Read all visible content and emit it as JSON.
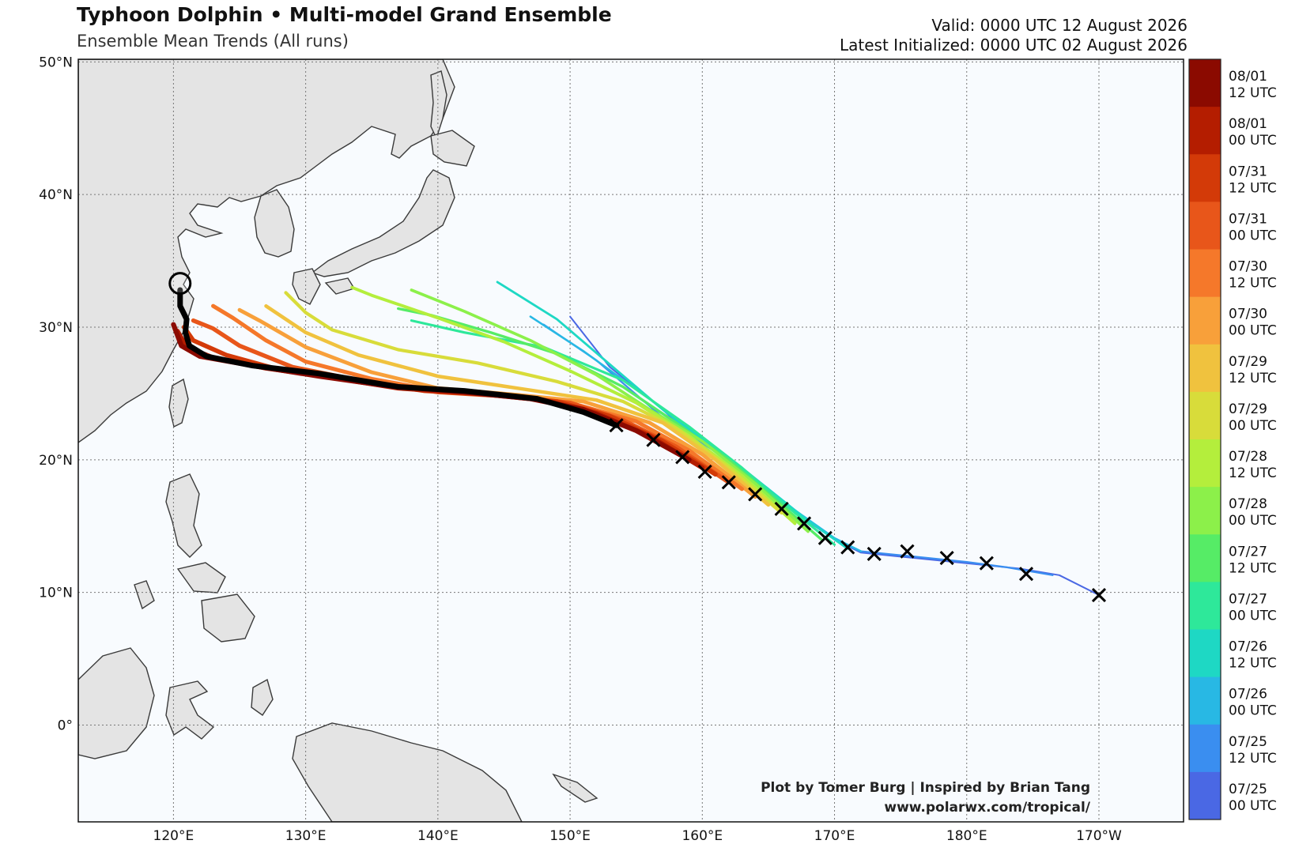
{
  "header": {
    "title": "Typhoon Dolphin • Multi-model Grand Ensemble",
    "subtitle": "Ensemble Mean Trends (All runs)",
    "valid": "Valid: 0000 UTC 12 August 2026",
    "latest": "Latest Initialized: 0000 UTC 02 August 2026"
  },
  "axes": {
    "lat_labels": [
      "50°N",
      "40°N",
      "30°N",
      "20°N",
      "10°N",
      "0°"
    ],
    "lon_labels": [
      "120°E",
      "130°E",
      "140°E",
      "150°E",
      "160°E",
      "170°E",
      "180°E",
      "170°W"
    ]
  },
  "colorbar": {
    "labels": [
      [
        "08/01",
        "12 UTC"
      ],
      [
        "08/01",
        "00 UTC"
      ],
      [
        "07/31",
        "12 UTC"
      ],
      [
        "07/31",
        "00 UTC"
      ],
      [
        "07/30",
        "12 UTC"
      ],
      [
        "07/30",
        "00 UTC"
      ],
      [
        "07/29",
        "12 UTC"
      ],
      [
        "07/29",
        "00 UTC"
      ],
      [
        "07/28",
        "12 UTC"
      ],
      [
        "07/28",
        "00 UTC"
      ],
      [
        "07/27",
        "12 UTC"
      ],
      [
        "07/27",
        "00 UTC"
      ],
      [
        "07/26",
        "12 UTC"
      ],
      [
        "07/26",
        "00 UTC"
      ],
      [
        "07/25",
        "12 UTC"
      ],
      [
        "07/25",
        "00 UTC"
      ]
    ],
    "colors": [
      "#8b0a00",
      "#b41d00",
      "#d33a08",
      "#e8561a",
      "#f5782a",
      "#f8a03a",
      "#f0c23e",
      "#d8dc3a",
      "#b4ee3c",
      "#8cf04a",
      "#56ec66",
      "#2ee89a",
      "#1ed8c4",
      "#28b8e4",
      "#3a8ef0",
      "#4a68e4"
    ]
  },
  "credits": {
    "line1": "Plot by Tomer Burg | Inspired by Brian Tang",
    "line2": "www.polarwx.com/tropical/"
  },
  "chart_data": {
    "type": "map",
    "projection": "equirectangular",
    "lon_range": [
      112.8,
      196.4
    ],
    "lat_range": [
      -7.3,
      50.2
    ],
    "gridlines": true,
    "ensemble_mean_tracks": [
      {
        "run": "07/25 00 UTC",
        "color": "#4a68e4",
        "points": [
          [
            190,
            9.8
          ],
          [
            187,
            11.3
          ],
          [
            184,
            11.8
          ],
          [
            180,
            12.2
          ],
          [
            176,
            12.6
          ],
          [
            172,
            13.0
          ],
          [
            170,
            14.0
          ],
          [
            167,
            16.0
          ],
          [
            164,
            18.2
          ],
          [
            160,
            21.0
          ],
          [
            157,
            23.8
          ],
          [
            153,
            27.0
          ],
          [
            150,
            30.8
          ]
        ]
      },
      {
        "run": "07/25 12 UTC",
        "color": "#3a8ef0",
        "points": [
          [
            186.5,
            11.3
          ],
          [
            183,
            11.9
          ],
          [
            180,
            12.3
          ],
          [
            176,
            12.7
          ],
          [
            172,
            13.1
          ],
          [
            170,
            14.0
          ],
          [
            167,
            16.1
          ],
          [
            164,
            18.4
          ],
          [
            161,
            20.6
          ],
          [
            157,
            23.2
          ],
          [
            152,
            27.5
          ],
          [
            148,
            30.2
          ]
        ]
      },
      {
        "run": "07/26 00 UTC",
        "color": "#28b8e4",
        "points": [
          [
            172,
            13.1
          ],
          [
            170,
            14.1
          ],
          [
            167,
            16.2
          ],
          [
            163.5,
            19.0
          ],
          [
            160,
            21.4
          ],
          [
            156,
            24.6
          ],
          [
            151,
            28.2
          ],
          [
            147,
            30.8
          ]
        ]
      },
      {
        "run": "07/26 12 UTC",
        "color": "#1ed8c4",
        "points": [
          [
            171,
            13.3
          ],
          [
            168,
            15.4
          ],
          [
            165,
            17.8
          ],
          [
            161,
            20.8
          ],
          [
            157,
            23.8
          ],
          [
            153,
            27.2
          ],
          [
            149,
            30.6
          ],
          [
            144.5,
            33.4
          ]
        ]
      },
      {
        "run": "07/27 00 UTC",
        "color": "#2ee89a",
        "points": [
          [
            170,
            13.6
          ],
          [
            167,
            16.0
          ],
          [
            163,
            19.4
          ],
          [
            159,
            22.5
          ],
          [
            154,
            26.0
          ],
          [
            148,
            28.5
          ],
          [
            142,
            29.6
          ],
          [
            138,
            30.5
          ]
        ]
      },
      {
        "run": "07/27 12 UTC",
        "color": "#56ec66",
        "points": [
          [
            169,
            14.0
          ],
          [
            166,
            16.6
          ],
          [
            162,
            20.0
          ],
          [
            158,
            22.8
          ],
          [
            154,
            25.5
          ],
          [
            149,
            28.0
          ],
          [
            144,
            29.6
          ],
          [
            139.5,
            30.9
          ],
          [
            137,
            31.4
          ]
        ]
      },
      {
        "run": "07/28 00 UTC",
        "color": "#8cf04a",
        "points": [
          [
            168,
            14.6
          ],
          [
            164,
            18.2
          ],
          [
            160,
            21.4
          ],
          [
            156,
            23.8
          ],
          [
            152,
            26.4
          ],
          [
            147,
            29.0
          ],
          [
            142,
            31.2
          ],
          [
            138,
            32.8
          ]
        ]
      },
      {
        "run": "07/28 12 UTC",
        "color": "#b4ee3c",
        "points": [
          [
            167,
            15.2
          ],
          [
            163,
            18.8
          ],
          [
            159,
            21.8
          ],
          [
            155,
            24.3
          ],
          [
            150,
            26.7
          ],
          [
            145,
            28.9
          ],
          [
            140,
            30.7
          ],
          [
            135,
            32.4
          ],
          [
            133.5,
            33.0
          ]
        ]
      },
      {
        "run": "07/29 00 UTC",
        "color": "#d8dc3a",
        "points": [
          [
            166,
            16.0
          ],
          [
            162,
            19.4
          ],
          [
            158,
            22.4
          ],
          [
            154,
            24.4
          ],
          [
            149,
            25.9
          ],
          [
            143,
            27.3
          ],
          [
            137,
            28.3
          ],
          [
            132,
            29.8
          ],
          [
            130,
            31.1
          ],
          [
            128.5,
            32.6
          ]
        ]
      },
      {
        "run": "07/29 12 UTC",
        "color": "#f0c23e",
        "points": [
          [
            165,
            16.6
          ],
          [
            161,
            20.0
          ],
          [
            157,
            22.8
          ],
          [
            152,
            24.5
          ],
          [
            146,
            25.4
          ],
          [
            140,
            26.3
          ],
          [
            134,
            27.9
          ],
          [
            130,
            29.6
          ],
          [
            127,
            31.6
          ]
        ]
      },
      {
        "run": "07/30 00 UTC",
        "color": "#f8a03a",
        "points": [
          [
            164,
            17.2
          ],
          [
            160,
            20.4
          ],
          [
            156,
            22.8
          ],
          [
            151,
            24.4
          ],
          [
            146,
            24.9
          ],
          [
            140,
            25.4
          ],
          [
            135,
            26.6
          ],
          [
            130,
            28.5
          ],
          [
            126.5,
            30.5
          ],
          [
            125,
            31.3
          ]
        ]
      },
      {
        "run": "07/30 12 UTC",
        "color": "#f5782a",
        "points": [
          [
            163,
            17.8
          ],
          [
            159,
            20.7
          ],
          [
            155,
            22.9
          ],
          [
            150,
            24.3
          ],
          [
            145,
            24.9
          ],
          [
            140,
            25.2
          ],
          [
            135,
            26.1
          ],
          [
            130,
            27.4
          ],
          [
            127,
            29.0
          ],
          [
            124.5,
            30.7
          ],
          [
            123,
            31.6
          ]
        ]
      },
      {
        "run": "07/31 00 UTC",
        "color": "#e8561a",
        "points": [
          [
            162,
            18.3
          ],
          [
            158,
            21.0
          ],
          [
            154,
            23.0
          ],
          [
            150,
            24.3
          ],
          [
            145,
            24.8
          ],
          [
            140,
            25.1
          ],
          [
            134,
            26.0
          ],
          [
            129,
            27.0
          ],
          [
            125,
            28.6
          ],
          [
            123,
            29.9
          ],
          [
            121.5,
            30.5
          ]
        ]
      },
      {
        "run": "07/31 12 UTC",
        "color": "#d33a08",
        "points": [
          [
            161,
            18.9
          ],
          [
            157,
            21.4
          ],
          [
            153,
            23.3
          ],
          [
            149,
            24.4
          ],
          [
            144,
            24.9
          ],
          [
            139,
            25.2
          ],
          [
            133,
            26.1
          ],
          [
            128,
            26.8
          ],
          [
            124,
            27.9
          ],
          [
            121.5,
            29.0
          ],
          [
            120.8,
            30.0
          ]
        ]
      },
      {
        "run": "08/01 00 UTC",
        "color": "#b41d00",
        "points": [
          [
            160,
            19.4
          ],
          [
            156,
            21.8
          ],
          [
            152,
            23.5
          ],
          [
            148,
            24.5
          ],
          [
            143,
            25.0
          ],
          [
            137,
            25.4
          ],
          [
            132,
            26.2
          ],
          [
            127,
            26.9
          ],
          [
            123,
            27.7
          ],
          [
            121,
            28.5
          ],
          [
            120.3,
            29.7
          ]
        ]
      },
      {
        "run": "08/01 12 UTC",
        "color": "#8b0a00",
        "points": [
          [
            159,
            20.0
          ],
          [
            155,
            22.2
          ],
          [
            151,
            23.8
          ],
          [
            147,
            24.6
          ],
          [
            142,
            25.1
          ],
          [
            136,
            25.6
          ],
          [
            131,
            26.3
          ],
          [
            126,
            27.1
          ],
          [
            122,
            27.8
          ],
          [
            120.6,
            28.6
          ],
          [
            120,
            30.2
          ]
        ]
      }
    ],
    "best_track": {
      "color": "#000000",
      "points": [
        [
          153.5,
          22.6
        ],
        [
          151,
          23.6
        ],
        [
          147.5,
          24.6
        ],
        [
          142,
          25.2
        ],
        [
          137,
          25.5
        ],
        [
          131,
          26.5
        ],
        [
          126,
          27.1
        ],
        [
          122.5,
          27.8
        ],
        [
          121.2,
          28.6
        ],
        [
          120.9,
          29.6
        ],
        [
          121.0,
          30.6
        ],
        [
          120.5,
          31.6
        ],
        [
          120.5,
          32.8
        ]
      ],
      "markers_x": [
        [
          190,
          9.8
        ],
        [
          184.5,
          11.4
        ],
        [
          181.5,
          12.2
        ],
        [
          178.5,
          12.6
        ],
        [
          175.5,
          13.1
        ],
        [
          173,
          12.9
        ],
        [
          171,
          13.4
        ],
        [
          169.3,
          14.1
        ],
        [
          167.7,
          15.2
        ],
        [
          166,
          16.3
        ],
        [
          164,
          17.4
        ],
        [
          162,
          18.3
        ],
        [
          160.2,
          19.1
        ],
        [
          158.5,
          20.2
        ],
        [
          156.3,
          21.5
        ],
        [
          153.5,
          22.6
        ]
      ],
      "current_position": [
        120.5,
        33.3
      ]
    }
  }
}
